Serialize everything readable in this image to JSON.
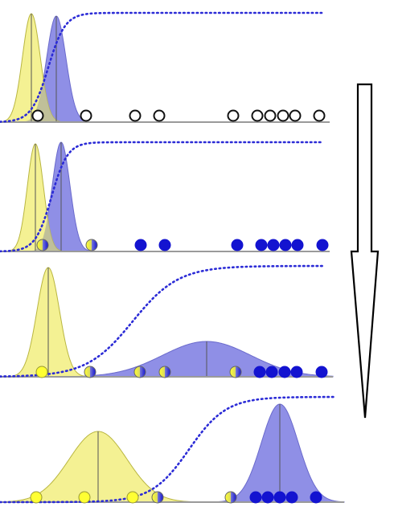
{
  "colors": {
    "yellow_fill": "#f3f08a",
    "yellow_stroke": "#b9b640",
    "blue_fill": "#8f8fe6",
    "blue_stroke": "#6a6acc",
    "point_blue": "#1313d0",
    "point_yellow": "#ffff33",
    "curve_dotted": "#2b2bd6",
    "axis_gray": "#9a9a9a",
    "overlap_fill": "#b9b99a",
    "arrow_stroke": "#000000"
  },
  "icons": {
    "arrow": "down-arrow-icon"
  },
  "chart_data": [
    {
      "type": "diagram",
      "panel": 1,
      "yellow_gaussian": {
        "mean": 39,
        "sd": 11,
        "peak": 135
      },
      "blue_gaussian": {
        "mean": 70,
        "sd": 12,
        "peak": 132
      },
      "sigmoid": {
        "center": 60,
        "slope": 0.095,
        "top": 16
      },
      "points": [
        {
          "x": 47,
          "kind": "open"
        },
        {
          "x": 107,
          "kind": "open"
        },
        {
          "x": 168,
          "kind": "open"
        },
        {
          "x": 198,
          "kind": "open"
        },
        {
          "x": 290,
          "kind": "open"
        },
        {
          "x": 320,
          "kind": "open"
        },
        {
          "x": 336,
          "kind": "open"
        },
        {
          "x": 352,
          "kind": "open"
        },
        {
          "x": 367,
          "kind": "open"
        },
        {
          "x": 397,
          "kind": "open"
        }
      ]
    },
    {
      "type": "diagram",
      "panel": 2,
      "yellow_gaussian": {
        "mean": 44,
        "sd": 10,
        "peak": 134
      },
      "blue_gaussian": {
        "mean": 76,
        "sd": 11,
        "peak": 136
      },
      "sigmoid": {
        "center": 64,
        "slope": 0.1,
        "top": 177
      },
      "points": [
        {
          "x": 53,
          "kind": "half"
        },
        {
          "x": 114,
          "kind": "half"
        },
        {
          "x": 175,
          "kind": "blue"
        },
        {
          "x": 205,
          "kind": "blue"
        },
        {
          "x": 295,
          "kind": "blue"
        },
        {
          "x": 325,
          "kind": "blue"
        },
        {
          "x": 340,
          "kind": "blue"
        },
        {
          "x": 355,
          "kind": "blue"
        },
        {
          "x": 370,
          "kind": "blue"
        },
        {
          "x": 401,
          "kind": "blue"
        }
      ]
    },
    {
      "type": "diagram",
      "panel": 3,
      "yellow_gaussian": {
        "mean": 60,
        "sd": 14,
        "peak": 136
      },
      "blue_gaussian": {
        "mean": 257,
        "sd": 55,
        "peak": 44
      },
      "sigmoid": {
        "center": 165,
        "slope": 0.035,
        "top": 331
      },
      "points": [
        {
          "x": 52,
          "kind": "yellow"
        },
        {
          "x": 112,
          "kind": "half"
        },
        {
          "x": 174,
          "kind": "half"
        },
        {
          "x": 205,
          "kind": "half"
        },
        {
          "x": 293,
          "kind": "half"
        },
        {
          "x": 323,
          "kind": "blue"
        },
        {
          "x": 338,
          "kind": "blue"
        },
        {
          "x": 354,
          "kind": "blue"
        },
        {
          "x": 369,
          "kind": "blue"
        },
        {
          "x": 400,
          "kind": "blue"
        }
      ]
    },
    {
      "type": "diagram",
      "panel": 4,
      "yellow_gaussian": {
        "mean": 122,
        "sd": 36,
        "peak": 88
      },
      "blue_gaussian": {
        "mean": 348,
        "sd": 23,
        "peak": 122
      },
      "sigmoid": {
        "center": 235,
        "slope": 0.043,
        "top": 494
      },
      "points": [
        {
          "x": 45,
          "kind": "yellow"
        },
        {
          "x": 105,
          "kind": "yellow"
        },
        {
          "x": 165,
          "kind": "yellow"
        },
        {
          "x": 196,
          "kind": "half"
        },
        {
          "x": 287,
          "kind": "half"
        },
        {
          "x": 318,
          "kind": "blue"
        },
        {
          "x": 333,
          "kind": "blue"
        },
        {
          "x": 348,
          "kind": "blue"
        },
        {
          "x": 363,
          "kind": "blue"
        },
        {
          "x": 393,
          "kind": "blue"
        }
      ]
    }
  ]
}
